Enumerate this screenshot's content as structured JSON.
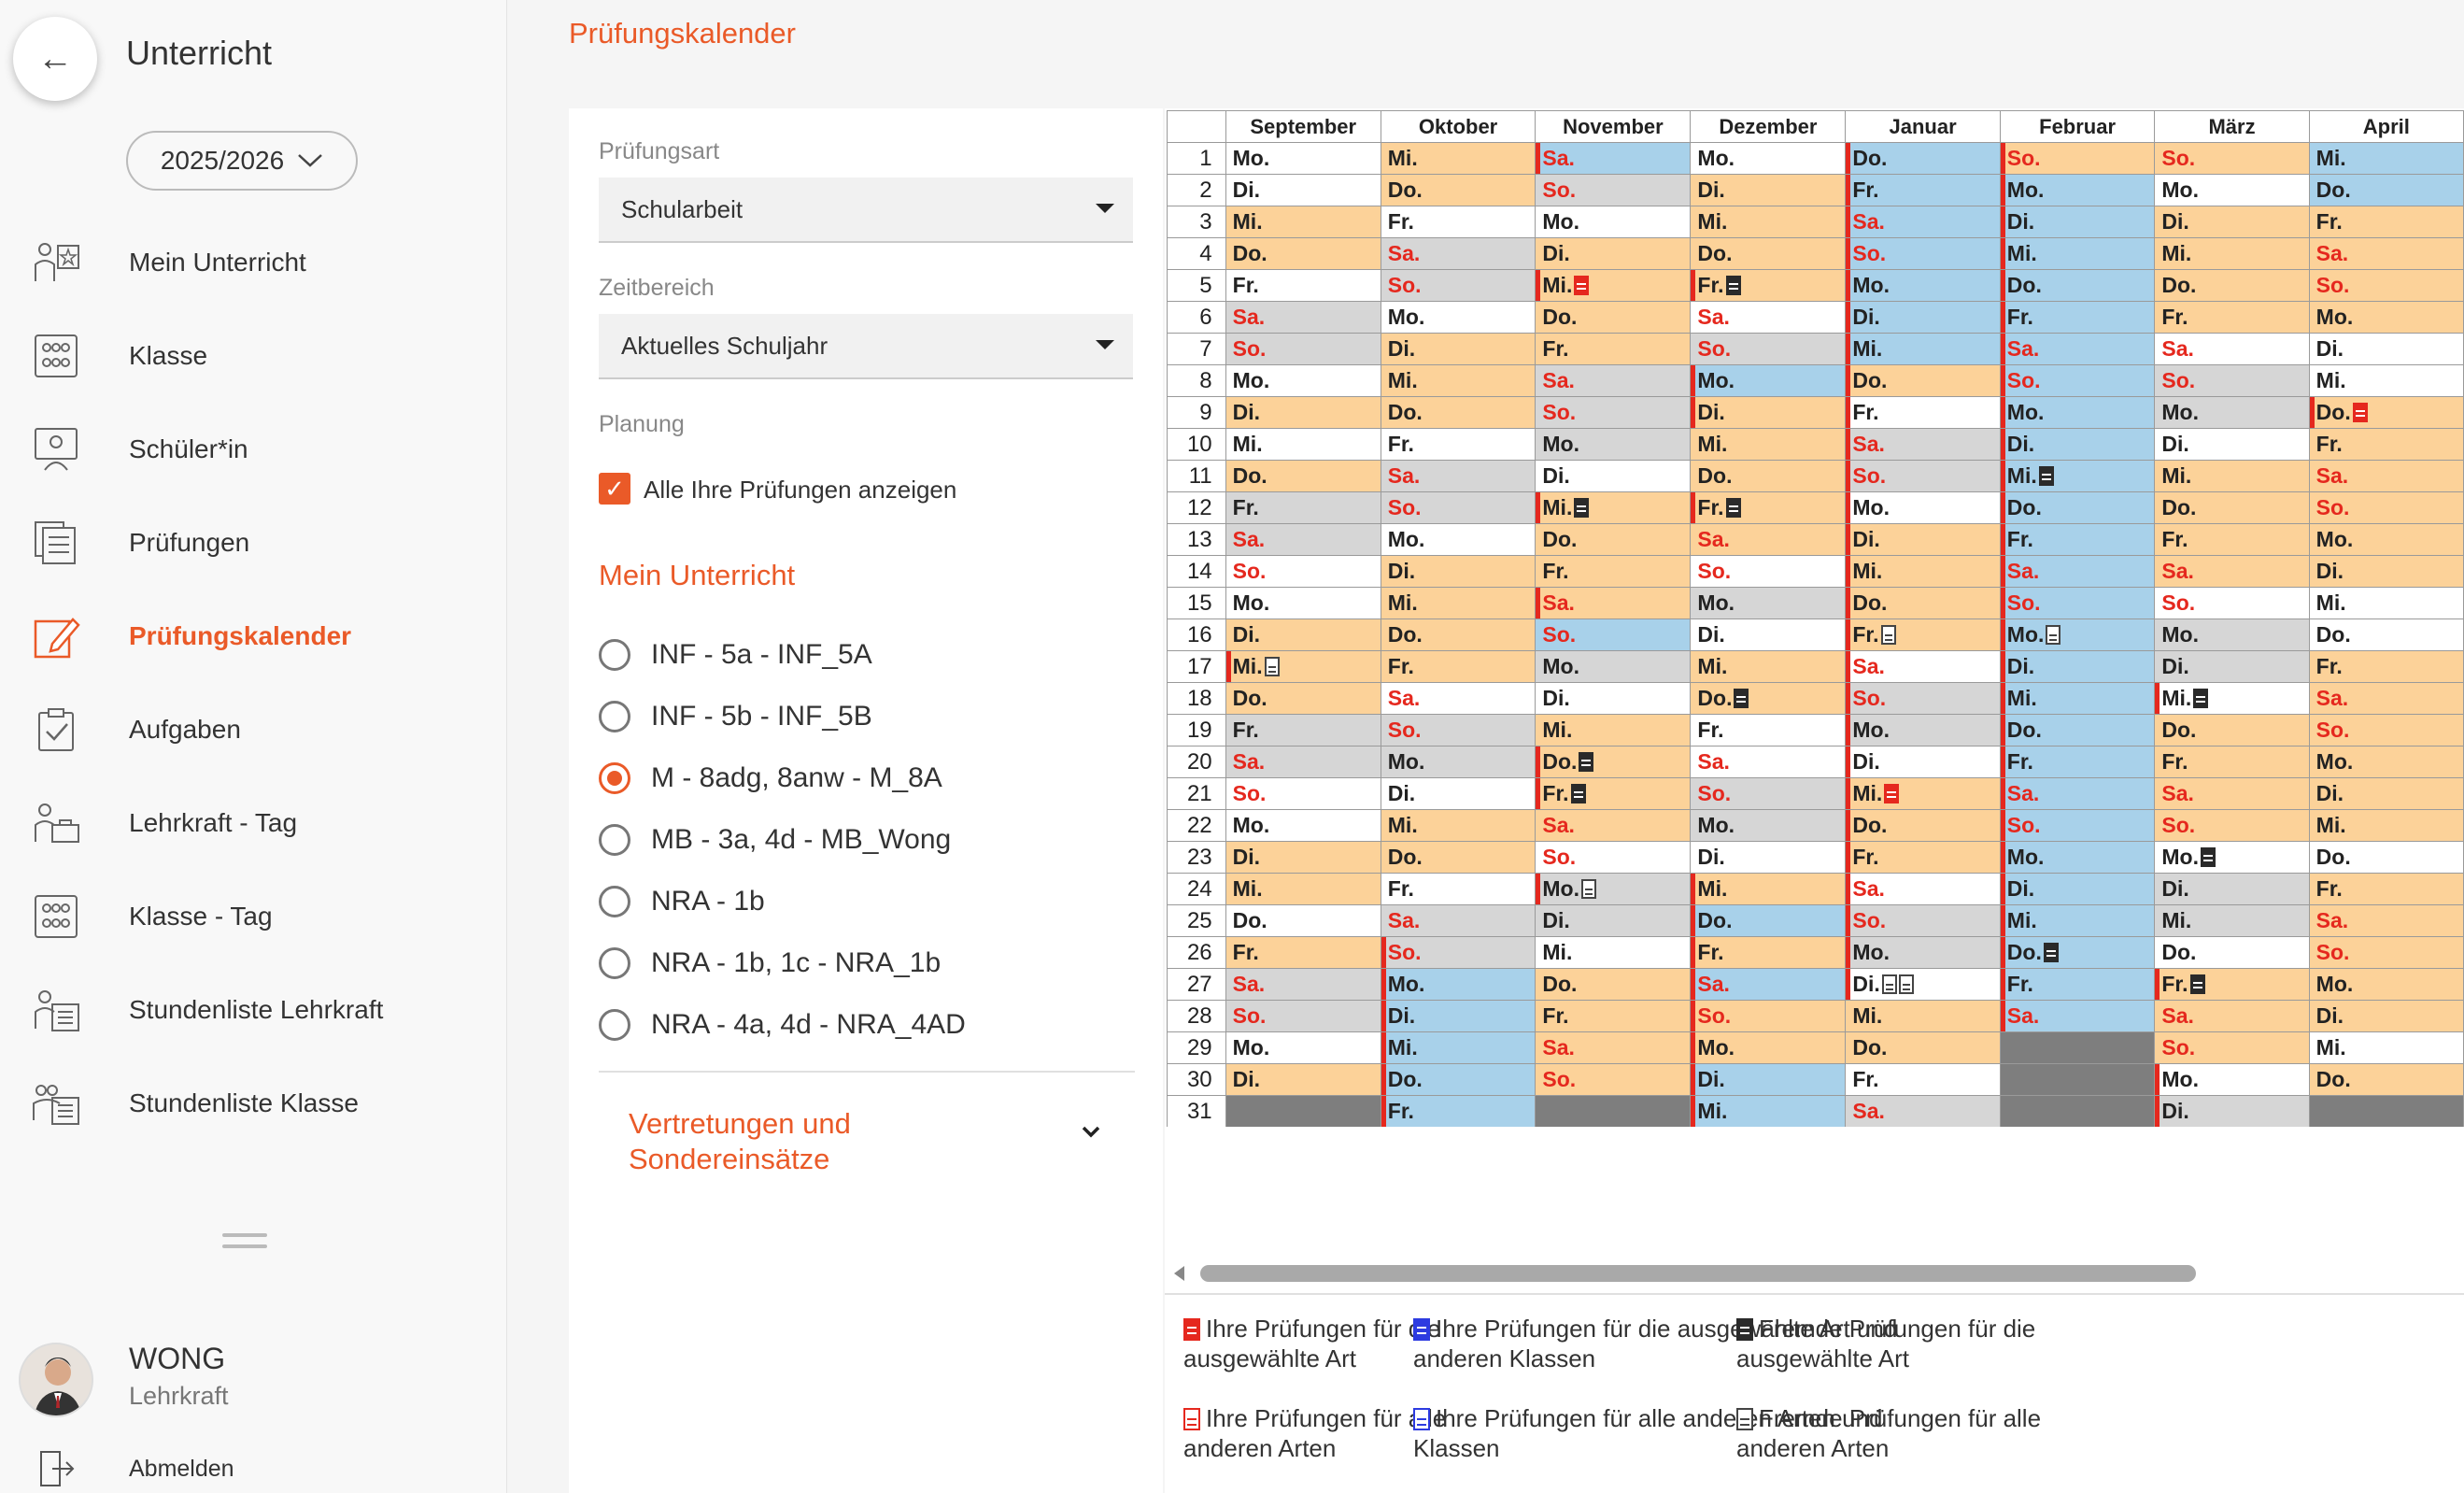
{
  "sidebar": {
    "title": "Unterricht",
    "year": "2025/2026",
    "items": [
      {
        "label": "Mein Unterricht",
        "icon": "teacher-star-icon"
      },
      {
        "label": "Klasse",
        "icon": "class-group-icon"
      },
      {
        "label": "Schüler*in",
        "icon": "student-screen-icon"
      },
      {
        "label": "Prüfungen",
        "icon": "exam-docs-icon"
      },
      {
        "label": "Prüfungskalender",
        "icon": "edit-calendar-icon",
        "active": true
      },
      {
        "label": "Aufgaben",
        "icon": "clipboard-check-icon"
      },
      {
        "label": "Lehrkraft - Tag",
        "icon": "teacher-briefcase-icon"
      },
      {
        "label": "Klasse - Tag",
        "icon": "class-group-icon"
      },
      {
        "label": "Stundenliste Lehrkraft",
        "icon": "teacher-list-icon"
      },
      {
        "label": "Stundenliste Klasse",
        "icon": "class-list-icon"
      }
    ],
    "user_name": "WONG",
    "user_role": "Lehrkraft",
    "logout": "Abmelden"
  },
  "page_title": "Prüfungskalender",
  "filter": {
    "exam_type_label": "Prüfungsart",
    "exam_type_value": "Schularbeit",
    "range_label": "Zeitbereich",
    "range_value": "Aktuelles Schuljahr",
    "planning_label": "Planung",
    "show_all_label": "Alle Ihre Prüfungen anzeigen",
    "section_title": "Mein Unterricht",
    "courses": [
      {
        "label": "INF - 5a - INF_5A",
        "selected": false
      },
      {
        "label": "INF - 5b - INF_5B",
        "selected": false
      },
      {
        "label": "M - 8adg, 8anw - M_8A",
        "selected": true
      },
      {
        "label": "MB - 3a, 4d - MB_Wong",
        "selected": false
      },
      {
        "label": "NRA - 1b",
        "selected": false
      },
      {
        "label": "NRA - 1b, 1c - NRA_1b",
        "selected": false
      },
      {
        "label": "NRA - 4a, 4d - NRA_4AD",
        "selected": false
      }
    ],
    "substitution_line1": "Vertretungen und",
    "substitution_line2": "Sondereinsätze"
  },
  "calendar": {
    "months": [
      "September",
      "Oktober",
      "November",
      "Dezember",
      "Januar",
      "Februar",
      "März",
      "April"
    ],
    "legend_colors": {
      "w": "#ffffff",
      "o": "#fcd299",
      "b": "#a8d1ea",
      "g": "#d6d6d6",
      "x": "#7e7e7e"
    },
    "columns": [
      {
        "days": [
          "Mo.",
          "Di.",
          "Mi.",
          "Do.",
          "Fr.",
          "Sa.",
          "So.",
          "Mo.",
          "Di.",
          "Mi.",
          "Do.",
          "Fr.",
          "Sa.",
          "So.",
          "Mo.",
          "Di.",
          "Mi.",
          "Do.",
          "Fr.",
          "Sa.",
          "So.",
          "Mo.",
          "Di.",
          "Mi.",
          "Do.",
          "Fr.",
          "Sa.",
          "So.",
          "Mo.",
          "Di.",
          ""
        ],
        "bg": "wwoowggwowoggwwoooggwwoowoggwox",
        "marks": [
          17
        ],
        "docs": {
          "17": [
            "o"
          ]
        }
      },
      {
        "days": [
          "Mi.",
          "Do.",
          "Fr.",
          "Sa.",
          "So.",
          "Mo.",
          "Di.",
          "Mi.",
          "Do.",
          "Fr.",
          "Sa.",
          "So.",
          "Mo.",
          "Di.",
          "Mi.",
          "Do.",
          "Fr.",
          "Sa.",
          "So.",
          "Mo.",
          "Di.",
          "Mi.",
          "Do.",
          "Fr.",
          "Sa.",
          "So.",
          "Mo.",
          "Di.",
          "Mi.",
          "Do.",
          "Fr."
        ],
        "bg": "oowggwooowggwoooowggwoowggbbbbbb",
        "marks": [
          26,
          27,
          28,
          29,
          30,
          31
        ],
        "docs": {}
      },
      {
        "days": [
          "Sa.",
          "So.",
          "Mo.",
          "Di.",
          "Mi.",
          "Do.",
          "Fr.",
          "Sa.",
          "So.",
          "Mo.",
          "Di.",
          "Mi.",
          "Do.",
          "Fr.",
          "Sa.",
          "So.",
          "Mo.",
          "Di.",
          "Mi.",
          "Do.",
          "Fr.",
          "Sa.",
          "So.",
          "Mo.",
          "Di.",
          "Mi.",
          "Do.",
          "Fr.",
          "Sa.",
          "So.",
          ""
        ],
        "bg": "bgwoooogggwoooobgwoooowggwoooowggx",
        "marks": [
          1,
          5,
          12,
          15,
          20,
          21,
          24
        ],
        "docs": {
          "5": [
            "r"
          ],
          "12": [
            "k"
          ],
          "20": [
            "k"
          ],
          "21": [
            "k"
          ],
          "24": [
            "o"
          ]
        }
      },
      {
        "days": [
          "Mo.",
          "Di.",
          "Mi.",
          "Do.",
          "Fr.",
          "Sa.",
          "So.",
          "Mo.",
          "Di.",
          "Mi.",
          "Do.",
          "Fr.",
          "Sa.",
          "So.",
          "Mo.",
          "Di.",
          "Mi.",
          "Do.",
          "Fr.",
          "Sa.",
          "So.",
          "Mo.",
          "Di.",
          "Mi.",
          "Do.",
          "Fr.",
          "Sa.",
          "So.",
          "Mo.",
          "Di.",
          "Mi."
        ],
        "bg": "woooowgbooooowgwoowwggwoboboobbbb",
        "marks": [
          5,
          8,
          9,
          12,
          24,
          25,
          26,
          27,
          28,
          29,
          30,
          31
        ],
        "docs": {
          "5": [
            "k"
          ],
          "12": [
            "k"
          ],
          "18": [
            "k"
          ]
        }
      },
      {
        "days": [
          "Do.",
          "Fr.",
          "Sa.",
          "So.",
          "Mo.",
          "Di.",
          "Mi.",
          "Do.",
          "Fr.",
          "Sa.",
          "So.",
          "Mo.",
          "Di.",
          "Mi.",
          "Do.",
          "Fr.",
          "Sa.",
          "So.",
          "Mo.",
          "Di.",
          "Mi.",
          "Do.",
          "Fr.",
          "Sa.",
          "So.",
          "Mo.",
          "Di.",
          "Mi.",
          "Do.",
          "Fr.",
          "Sa."
        ],
        "bg": "bbbbbbbowggwoooowggwooowggwoowggwowg",
        "marks": [
          1,
          2,
          3,
          4,
          5,
          6,
          7,
          8,
          9,
          10,
          11,
          12,
          13,
          14,
          15,
          16,
          17,
          18,
          19,
          20,
          21,
          22,
          23,
          24,
          25,
          26,
          27
        ],
        "docs": {
          "16": [
            "o"
          ],
          "21": [
            "r"
          ],
          "27": [
            "o",
            "o"
          ]
        }
      },
      {
        "days": [
          "So.",
          "Mo.",
          "Di.",
          "Mi.",
          "Do.",
          "Fr.",
          "Sa.",
          "So.",
          "Mo.",
          "Di.",
          "Mi.",
          "Do.",
          "Fr.",
          "Sa.",
          "So.",
          "Mo.",
          "Di.",
          "Mi.",
          "Do.",
          "Fr.",
          "Sa.",
          "So.",
          "Mo.",
          "Di.",
          "Mi.",
          "Do.",
          "Fr.",
          "Sa.",
          "",
          "",
          ""
        ],
        "bg": "obbbbbbbbbbbbbbbbbbbbbbbbbbbxxx",
        "marks": [
          1,
          2,
          3,
          4,
          5,
          6,
          7,
          8,
          9,
          10,
          11,
          12,
          13,
          14,
          15,
          16,
          17,
          18,
          19,
          20,
          21,
          22,
          23,
          24,
          25,
          26,
          27,
          28
        ],
        "docs": {
          "11": [
            "k"
          ],
          "16": [
            "o"
          ],
          "26": [
            "k"
          ]
        }
      },
      {
        "days": [
          "So.",
          "Mo.",
          "Di.",
          "Mi.",
          "Do.",
          "Fr.",
          "Sa.",
          "So.",
          "Mo.",
          "Di.",
          "Mi.",
          "Do.",
          "Fr.",
          "Sa.",
          "So.",
          "Mo.",
          "Di.",
          "Mi.",
          "Do.",
          "Fr.",
          "Sa.",
          "So.",
          "Mo.",
          "Di.",
          "Mi.",
          "Do.",
          "Fr.",
          "Sa.",
          "So.",
          "Mo.",
          "Di."
        ],
        "bg": "owoooowggwoooowggwoooowggwooowggbb",
        "marks": [
          18,
          27,
          30,
          31
        ],
        "docs": {
          "18": [
            "k"
          ],
          "23": [
            "k"
          ],
          "27": [
            "k"
          ]
        }
      },
      {
        "days": [
          "Mi.",
          "Do.",
          "Fr.",
          "Sa.",
          "So.",
          "Mo.",
          "Di.",
          "Mi.",
          "Do.",
          "Fr.",
          "Sa.",
          "So.",
          "Mo.",
          "Di.",
          "Mi.",
          "Do.",
          "Fr.",
          "Sa.",
          "So.",
          "Mo.",
          "Di.",
          "Mi.",
          "Do.",
          "Fr.",
          "Sa.",
          "So.",
          "Mo.",
          "Di.",
          "Mi.",
          "Do.",
          ""
        ],
        "bg": "bboooowwoooooowwoooooowooooowoowx",
        "marks": [
          9
        ],
        "docs": {
          "9": [
            "r"
          ]
        }
      }
    ]
  },
  "legend": [
    {
      "icon": "r",
      "line1": "Ihre Prüfungen für die",
      "line2": "ausgewählte Art"
    },
    {
      "icon": "b",
      "line1": "Ihre Prüfungen für die ausgewählte Art und",
      "line2": "anderen Klassen"
    },
    {
      "icon": "k",
      "line1": "Fremde Prüfungen für die",
      "line2": "ausgewählte Art"
    },
    {
      "icon": "ro",
      "line1": "Ihre Prüfungen für alle",
      "line2": "anderen Arten"
    },
    {
      "icon": "bo",
      "line1": "Ihre Prüfungen für alle anderen Arten und",
      "line2": "Klassen"
    },
    {
      "icon": "ko",
      "line1": "Fremde Prüfungen für alle",
      "line2": "anderen Arten"
    }
  ]
}
